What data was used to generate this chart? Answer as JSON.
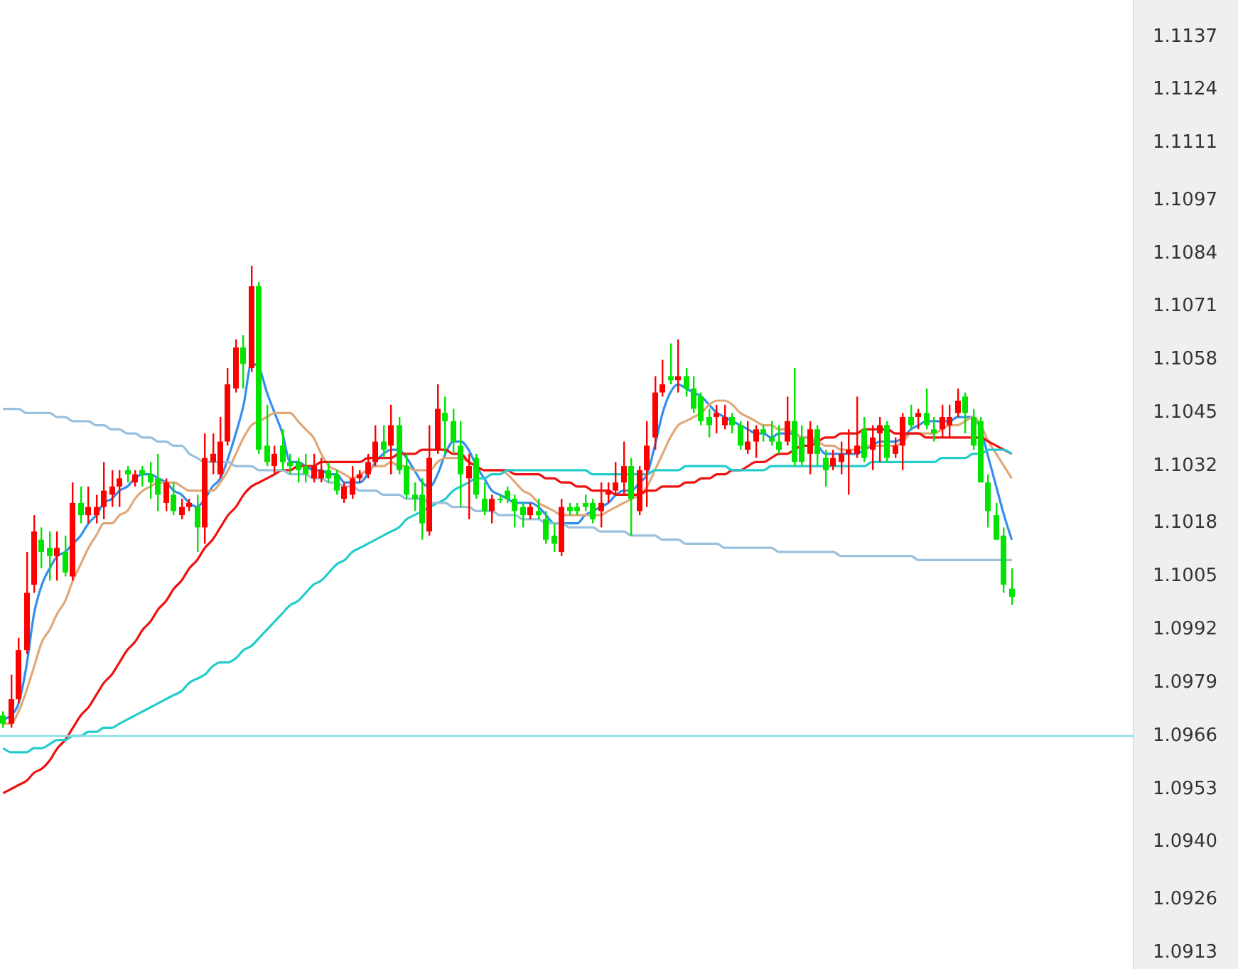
{
  "chart_data": {
    "type": "candlestick",
    "categories": [
      null,
      null,
      null,
      null,
      null,
      null,
      null,
      null,
      null,
      null,
      null,
      null,
      null,
      null,
      null,
      null,
      null,
      null,
      null,
      null,
      null,
      null,
      null,
      null,
      null,
      null,
      null,
      null,
      null,
      null,
      null,
      null,
      null,
      null,
      null,
      null,
      null,
      null,
      null,
      null,
      null,
      null,
      null,
      null,
      null,
      null,
      null,
      null,
      null,
      null,
      null,
      null,
      null,
      null,
      null,
      null,
      null,
      null,
      null,
      null,
      null,
      null,
      null,
      null,
      null,
      null,
      null,
      null,
      null,
      null,
      null,
      null,
      null,
      null,
      null,
      null,
      null,
      null,
      null,
      null,
      null,
      null,
      null,
      null,
      null,
      null,
      null,
      null,
      null,
      null,
      null,
      null,
      null,
      null,
      null,
      null,
      null,
      null,
      null,
      null,
      null,
      null,
      null,
      null,
      null,
      null,
      null,
      null,
      null,
      null,
      null,
      null,
      null,
      null,
      null,
      null,
      null,
      null,
      null,
      null,
      null,
      null,
      null,
      null,
      null,
      null,
      null,
      null,
      null,
      null,
      null
    ],
    "ohlc": [
      [
        1.0971,
        1.0972,
        1.0968,
        1.0969
      ],
      [
        1.0969,
        1.0981,
        1.0968,
        1.0975
      ],
      [
        1.0975,
        1.099,
        1.0974,
        1.0987
      ],
      [
        1.0987,
        1.1011,
        1.0986,
        1.1001
      ],
      [
        1.1003,
        1.102,
        1.1001,
        1.1016
      ],
      [
        1.1014,
        1.1017,
        1.1007,
        1.1011
      ],
      [
        1.1012,
        1.1016,
        1.1004,
        1.101
      ],
      [
        1.101,
        1.1016,
        1.1004,
        1.1012
      ],
      [
        1.1011,
        1.1015,
        1.1005,
        1.1006
      ],
      [
        1.1005,
        1.1028,
        1.1004,
        1.1023
      ],
      [
        1.1023,
        1.1027,
        1.1018,
        1.102
      ],
      [
        1.102,
        1.1027,
        1.1018,
        1.1022
      ],
      [
        1.102,
        1.1025,
        1.1018,
        1.1022
      ],
      [
        1.1022,
        1.1033,
        1.1019,
        1.1026
      ],
      [
        1.1025,
        1.1031,
        1.1022,
        1.1027
      ],
      [
        1.1027,
        1.1031,
        1.1022,
        1.1029
      ],
      [
        1.1031,
        1.1032,
        1.1028,
        1.103
      ],
      [
        1.1028,
        1.1031,
        1.1027,
        1.103
      ],
      [
        1.1031,
        1.1032,
        1.1027,
        1.103
      ],
      [
        1.103,
        1.1033,
        1.1024,
        1.1028
      ],
      [
        1.1029,
        1.1035,
        1.1021,
        1.1025
      ],
      [
        1.1023,
        1.1029,
        1.1021,
        1.1028
      ],
      [
        1.1025,
        1.1028,
        1.102,
        1.1021
      ],
      [
        1.102,
        1.1024,
        1.1019,
        1.1022
      ],
      [
        1.1022,
        1.1024,
        1.1021,
        1.1023
      ],
      [
        1.1022,
        1.1025,
        1.1011,
        1.1017
      ],
      [
        1.1017,
        1.104,
        1.1013,
        1.1034
      ],
      [
        1.1033,
        1.104,
        1.103,
        1.1035
      ],
      [
        1.103,
        1.1044,
        1.1029,
        1.1038
      ],
      [
        1.1038,
        1.1056,
        1.1037,
        1.1052
      ],
      [
        1.1051,
        1.1063,
        1.105,
        1.1061
      ],
      [
        1.1061,
        1.1064,
        1.1051,
        1.1057
      ],
      [
        1.1056,
        1.1081,
        1.1055,
        1.1076
      ],
      [
        1.1076,
        1.1077,
        1.1035,
        1.1036
      ],
      [
        1.1037,
        1.1047,
        1.1032,
        1.1033
      ],
      [
        1.1032,
        1.1037,
        1.103,
        1.1035
      ],
      [
        1.1037,
        1.1041,
        1.1031,
        1.1033
      ],
      [
        1.1033,
        1.1035,
        1.103,
        1.1032
      ],
      [
        1.1033,
        1.1034,
        1.1028,
        1.1031
      ],
      [
        1.1032,
        1.1035,
        1.1028,
        1.103
      ],
      [
        1.1029,
        1.1035,
        1.1028,
        1.1032
      ],
      [
        1.1029,
        1.1034,
        1.1028,
        1.1031
      ],
      [
        1.1031,
        1.1033,
        1.1028,
        1.1029
      ],
      [
        1.103,
        1.1031,
        1.1025,
        1.1026
      ],
      [
        1.1024,
        1.1028,
        1.1023,
        1.1027
      ],
      [
        1.1025,
        1.1032,
        1.1024,
        1.1029
      ],
      [
        1.1029,
        1.1031,
        1.1028,
        1.103
      ],
      [
        1.103,
        1.1035,
        1.1029,
        1.1033
      ],
      [
        1.1033,
        1.1042,
        1.1032,
        1.1038
      ],
      [
        1.1038,
        1.1042,
        1.1034,
        1.1036
      ],
      [
        1.1037,
        1.1047,
        1.103,
        1.1042
      ],
      [
        1.1042,
        1.1044,
        1.103,
        1.1031
      ],
      [
        1.1032,
        1.1035,
        1.1024,
        1.1025
      ],
      [
        1.1025,
        1.1028,
        1.1021,
        1.1024
      ],
      [
        1.1025,
        1.1029,
        1.1014,
        1.1018
      ],
      [
        1.1016,
        1.1042,
        1.1015,
        1.1034
      ],
      [
        1.1036,
        1.1052,
        1.1035,
        1.1046
      ],
      [
        1.1045,
        1.1049,
        1.1035,
        1.1043
      ],
      [
        1.1043,
        1.1046,
        1.1035,
        1.1038
      ],
      [
        1.1037,
        1.1043,
        1.1022,
        1.103
      ],
      [
        1.1029,
        1.1035,
        1.1019,
        1.1032
      ],
      [
        1.1034,
        1.1035,
        1.1024,
        1.1025
      ],
      [
        1.1024,
        1.1028,
        1.102,
        1.1021
      ],
      [
        1.1021,
        1.1025,
        1.1018,
        1.1024
      ],
      [
        1.1024,
        1.1025,
        1.1023,
        1.1024
      ],
      [
        1.1026,
        1.1027,
        1.1023,
        1.1024
      ],
      [
        1.1024,
        1.1025,
        1.1017,
        1.1021
      ],
      [
        1.1022,
        1.1023,
        1.1017,
        1.102
      ],
      [
        1.102,
        1.1023,
        1.1019,
        1.1022
      ],
      [
        1.1021,
        1.1024,
        1.1019,
        1.102
      ],
      [
        1.1019,
        1.1021,
        1.1013,
        1.1014
      ],
      [
        1.1015,
        1.1018,
        1.1011,
        1.1013
      ],
      [
        1.1011,
        1.1024,
        1.101,
        1.1022
      ],
      [
        1.1022,
        1.1023,
        1.102,
        1.1021
      ],
      [
        1.1022,
        1.1023,
        1.102,
        1.1021
      ],
      [
        1.1023,
        1.1025,
        1.1021,
        1.1022
      ],
      [
        1.1023,
        1.1024,
        1.1018,
        1.1019
      ],
      [
        1.1021,
        1.1028,
        1.1017,
        1.1023
      ],
      [
        1.1025,
        1.1028,
        1.1023,
        1.1026
      ],
      [
        1.1026,
        1.1033,
        1.1025,
        1.1028
      ],
      [
        1.1028,
        1.1038,
        1.1025,
        1.1032
      ],
      [
        1.1032,
        1.1034,
        1.1015,
        1.1024
      ],
      [
        1.1021,
        1.1032,
        1.102,
        1.1031
      ],
      [
        1.1031,
        1.1043,
        1.1022,
        1.1037
      ],
      [
        1.1039,
        1.1054,
        1.1036,
        1.105
      ],
      [
        1.105,
        1.1058,
        1.1049,
        1.1052
      ],
      [
        1.1054,
        1.1062,
        1.1052,
        1.1053
      ],
      [
        1.1053,
        1.1063,
        1.105,
        1.1054
      ],
      [
        1.1054,
        1.1056,
        1.1049,
        1.1051
      ],
      [
        1.1051,
        1.1054,
        1.1045,
        1.1046
      ],
      [
        1.1049,
        1.105,
        1.1042,
        1.1043
      ],
      [
        1.1044,
        1.1046,
        1.1039,
        1.1042
      ],
      [
        1.1044,
        1.1047,
        1.104,
        1.1045
      ],
      [
        1.1042,
        1.1047,
        1.1041,
        1.1044
      ],
      [
        1.1044,
        1.1045,
        1.104,
        1.1042
      ],
      [
        1.1042,
        1.1043,
        1.1036,
        1.1037
      ],
      [
        1.1036,
        1.1043,
        1.1035,
        1.1038
      ],
      [
        1.1038,
        1.1042,
        1.1034,
        1.1041
      ],
      [
        1.1041,
        1.1042,
        1.1038,
        1.104
      ],
      [
        1.1039,
        1.1043,
        1.1037,
        1.1038
      ],
      [
        1.1038,
        1.1042,
        1.1035,
        1.1036
      ],
      [
        1.1038,
        1.1049,
        1.1037,
        1.1043
      ],
      [
        1.1043,
        1.1056,
        1.1032,
        1.1033
      ],
      [
        1.1039,
        1.1042,
        1.1032,
        1.1033
      ],
      [
        1.1035,
        1.1043,
        1.103,
        1.1041
      ],
      [
        1.1041,
        1.1042,
        1.1032,
        1.1035
      ],
      [
        1.1034,
        1.1036,
        1.1027,
        1.1031
      ],
      [
        1.1032,
        1.1036,
        1.1031,
        1.1034
      ],
      [
        1.1033,
        1.1038,
        1.103,
        1.1035
      ],
      [
        1.1035,
        1.1041,
        1.1025,
        1.1036
      ],
      [
        1.1035,
        1.1049,
        1.1034,
        1.1037
      ],
      [
        1.1041,
        1.1044,
        1.1033,
        1.1034
      ],
      [
        1.1036,
        1.1042,
        1.1031,
        1.1039
      ],
      [
        1.104,
        1.1044,
        1.1033,
        1.1042
      ],
      [
        1.1042,
        1.1043,
        1.1033,
        1.1034
      ],
      [
        1.1035,
        1.1039,
        1.1034,
        1.1037
      ],
      [
        1.1037,
        1.1045,
        1.1031,
        1.1044
      ],
      [
        1.1044,
        1.1047,
        1.1041,
        1.1042
      ],
      [
        1.1044,
        1.1046,
        1.1041,
        1.1045
      ],
      [
        1.1045,
        1.1051,
        1.1041,
        1.1042
      ],
      [
        1.1041,
        1.1044,
        1.1038,
        1.104
      ],
      [
        1.1041,
        1.1047,
        1.1039,
        1.1044
      ],
      [
        1.1042,
        1.1047,
        1.1039,
        1.1044
      ],
      [
        1.1045,
        1.1051,
        1.1044,
        1.1048
      ],
      [
        1.1049,
        1.105,
        1.104,
        1.1045
      ],
      [
        1.1044,
        1.1046,
        1.1036,
        1.1037
      ],
      [
        1.1043,
        1.1044,
        1.1028,
        1.1028
      ],
      [
        1.1028,
        1.103,
        1.1017,
        1.1021
      ],
      [
        1.102,
        1.1023,
        1.1014,
        1.1014
      ],
      [
        1.1015,
        1.1017,
        1.1001,
        1.1003
      ],
      [
        1.1002,
        1.1007,
        1.0998,
        1.1
      ]
    ],
    "colors": [
      "#00e400",
      "#ff0000",
      "#ff0000",
      "#ff0000",
      "#ff0000",
      "#00e400",
      "#00e400",
      "#ff0000",
      "#00e400",
      "#ff0000",
      "#00e400",
      "#ff0000",
      "#ff0000",
      "#ff0000",
      "#ff0000",
      "#ff0000",
      "#00e400",
      "#ff0000",
      "#00e400",
      "#00e400",
      "#00e400",
      "#ff0000",
      "#00e400",
      "#ff0000",
      "#ff0000",
      "#00e400",
      "#ff0000",
      "#ff0000",
      "#ff0000",
      "#ff0000",
      "#ff0000",
      "#00e400",
      "#ff0000",
      "#00e400",
      "#00e400",
      "#ff0000",
      "#00e400",
      "#00e400",
      "#00e400",
      "#00e400",
      "#ff0000",
      "#ff0000",
      "#00e400",
      "#00e400",
      "#ff0000",
      "#ff0000",
      "#ff0000",
      "#ff0000",
      "#ff0000",
      "#00e400",
      "#ff0000",
      "#00e400",
      "#00e400",
      "#00e400",
      "#00e400",
      "#ff0000",
      "#ff0000",
      "#00e400",
      "#00e400",
      "#00e400",
      "#ff0000",
      "#00e400",
      "#00e400",
      "#ff0000",
      "#00e400",
      "#00e400",
      "#00e400",
      "#00e400",
      "#ff0000",
      "#00e400",
      "#00e400",
      "#00e400",
      "#ff0000",
      "#00e400",
      "#00e400",
      "#00e400",
      "#00e400",
      "#ff0000",
      "#ff0000",
      "#ff0000",
      "#ff0000",
      "#00e400",
      "#ff0000",
      "#ff0000",
      "#ff0000",
      "#ff0000",
      "#00e400",
      "#ff0000",
      "#00e400",
      "#00e400",
      "#00e400",
      "#00e400",
      "#ff0000",
      "#ff0000",
      "#00e400",
      "#00e400",
      "#ff0000",
      "#ff0000",
      "#00e400",
      "#00e400",
      "#00e400",
      "#ff0000",
      "#00e400",
      "#00e400",
      "#ff0000",
      "#00e400",
      "#00e400",
      "#ff0000",
      "#ff0000",
      "#ff0000",
      "#ff0000",
      "#00e400",
      "#ff0000",
      "#ff0000",
      "#00e400",
      "#ff0000",
      "#ff0000",
      "#00e400",
      "#ff0000",
      "#00e400",
      "#00e400",
      "#ff0000",
      "#ff0000",
      "#ff0000",
      "#00e400",
      "#00e400",
      "#00e400",
      "#00e400",
      "#00e400",
      "#00e400",
      "#00e400"
    ],
    "series": [
      {
        "type": "line",
        "color": "#99c0dd",
        "values": [
          1.1046,
          1.1046,
          1.1046,
          1.1045,
          1.1045,
          1.1045,
          1.1045,
          1.1044,
          1.1044,
          1.1043,
          1.1043,
          1.1043,
          1.1042,
          1.1042,
          1.1041,
          1.1041,
          1.104,
          1.104,
          1.1039,
          1.1039,
          1.1038,
          1.1038,
          1.1037,
          1.1037,
          1.1035,
          1.1034,
          1.1033,
          1.1033,
          1.1033,
          1.1033,
          1.1032,
          1.1032,
          1.1032,
          1.1031,
          1.1031,
          1.1031,
          1.1031,
          1.103,
          1.103,
          1.103,
          1.1029,
          1.1029,
          1.1028,
          1.1028,
          1.1027,
          1.1027,
          1.1026,
          1.1026,
          1.1026,
          1.1025,
          1.1025,
          1.1025,
          1.1024,
          1.1024,
          1.1024,
          1.1023,
          1.1023,
          1.1023,
          1.1022,
          1.1022,
          1.1022,
          1.1021,
          1.1021,
          1.1021,
          1.102,
          1.102,
          1.102,
          1.1019,
          1.1019,
          1.1019,
          1.1018,
          1.1018,
          1.1018,
          1.1017,
          1.1017,
          1.1017,
          1.1017,
          1.1016,
          1.1016,
          1.1016,
          1.1016,
          1.1015,
          1.1015,
          1.1015,
          1.1015,
          1.1014,
          1.1014,
          1.1014,
          1.1013,
          1.1013,
          1.1013,
          1.1013,
          1.1013,
          1.1012,
          1.1012,
          1.1012,
          1.1012,
          1.1012,
          1.1012,
          1.1012,
          1.1011,
          1.1011,
          1.1011,
          1.1011,
          1.1011,
          1.1011,
          1.1011,
          1.1011,
          1.101,
          1.101,
          1.101,
          1.101,
          1.101,
          1.101,
          1.101,
          1.101,
          1.101,
          1.101,
          1.1009,
          1.1009,
          1.1009,
          1.1009,
          1.1009,
          1.1009,
          1.1009,
          1.1009,
          1.1009,
          1.1009,
          1.1009,
          1.1009,
          1.1009
        ]
      },
      {
        "type": "line",
        "color": "#22cccc",
        "values": [
          1.0963,
          1.0962,
          1.0962,
          1.0962,
          1.0963,
          1.0963,
          1.0964,
          1.0965,
          1.0965,
          1.0966,
          1.0966,
          1.0967,
          1.0967,
          1.0968,
          1.0968,
          1.0969,
          1.097,
          1.0971,
          1.0972,
          1.0973,
          1.0974,
          1.0975,
          1.0976,
          1.0977,
          1.0979,
          1.098,
          1.0981,
          1.0983,
          1.0984,
          1.0984,
          1.0985,
          1.0987,
          1.0988,
          1.099,
          1.0992,
          1.0994,
          1.0996,
          1.0998,
          1.0999,
          1.1001,
          1.1003,
          1.1004,
          1.1006,
          1.1008,
          1.1009,
          1.1011,
          1.1012,
          1.1013,
          1.1014,
          1.1015,
          1.1016,
          1.1017,
          1.1019,
          1.102,
          1.1021,
          1.1022,
          1.1023,
          1.1024,
          1.1026,
          1.1027,
          1.1028,
          1.1029,
          1.1029,
          1.103,
          1.103,
          1.1031,
          1.1031,
          1.1031,
          1.1031,
          1.1031,
          1.1031,
          1.1031,
          1.1031,
          1.1031,
          1.1031,
          1.1031,
          1.103,
          1.103,
          1.103,
          1.103,
          1.103,
          1.103,
          1.103,
          1.103,
          1.1031,
          1.1031,
          1.1031,
          1.1031,
          1.1032,
          1.1032,
          1.1032,
          1.1032,
          1.1032,
          1.1032,
          1.1031,
          1.1031,
          1.1031,
          1.1031,
          1.1031,
          1.1032,
          1.1032,
          1.1032,
          1.1032,
          1.1032,
          1.1032,
          1.1032,
          1.1032,
          1.1032,
          1.1032,
          1.1032,
          1.1032,
          1.1032,
          1.1033,
          1.1033,
          1.1033,
          1.1033,
          1.1033,
          1.1033,
          1.1033,
          1.1033,
          1.1033,
          1.1034,
          1.1034,
          1.1034,
          1.1034,
          1.1035,
          1.1035,
          1.1036,
          1.1036,
          1.1036,
          1.1035
        ]
      },
      {
        "type": "line",
        "color": "#ee1111",
        "values": [
          1.0952,
          1.0953,
          1.0954,
          1.0955,
          1.0957,
          1.0958,
          1.096,
          1.0963,
          1.0965,
          1.0968,
          1.0971,
          1.0973,
          1.0976,
          1.0979,
          1.0981,
          1.0984,
          1.0987,
          1.0989,
          1.0992,
          1.0994,
          1.0997,
          1.0999,
          1.1002,
          1.1004,
          1.1007,
          1.1009,
          1.1012,
          1.1014,
          1.1017,
          1.102,
          1.1022,
          1.1025,
          1.1027,
          1.1028,
          1.1029,
          1.103,
          1.1031,
          1.1031,
          1.1032,
          1.1032,
          1.1032,
          1.1033,
          1.1033,
          1.1033,
          1.1033,
          1.1033,
          1.1033,
          1.1034,
          1.1034,
          1.1034,
          1.1034,
          1.1035,
          1.1035,
          1.1035,
          1.1036,
          1.1036,
          1.1036,
          1.1036,
          1.1035,
          1.1035,
          1.1033,
          1.1032,
          1.1031,
          1.1031,
          1.1031,
          1.1031,
          1.103,
          1.103,
          1.103,
          1.103,
          1.1029,
          1.1029,
          1.1028,
          1.1028,
          1.1027,
          1.1027,
          1.1026,
          1.1026,
          1.1026,
          1.1025,
          1.1025,
          1.1025,
          1.1025,
          1.1026,
          1.1026,
          1.1027,
          1.1027,
          1.1027,
          1.1028,
          1.1028,
          1.1029,
          1.1029,
          1.103,
          1.103,
          1.1031,
          1.1031,
          1.1032,
          1.1033,
          1.1033,
          1.1034,
          1.1035,
          1.1035,
          1.1036,
          1.1037,
          1.1037,
          1.1038,
          1.1039,
          1.1039,
          1.104,
          1.104,
          1.104,
          1.1041,
          1.1041,
          1.1041,
          1.1041,
          1.104,
          1.104,
          1.104,
          1.104,
          1.1039,
          1.1039,
          1.1039,
          1.1039,
          1.1039,
          1.1039,
          1.1039,
          1.1039,
          1.1038,
          1.1037,
          1.1036,
          1.1035
        ]
      },
      {
        "type": "line",
        "color": "#e0a878",
        "values": [
          1.0969,
          1.0969,
          1.0972,
          1.0977,
          1.0983,
          1.0989,
          1.0992,
          1.0996,
          1.0999,
          1.1004,
          1.1008,
          1.1012,
          1.1015,
          1.1018,
          1.1018,
          1.102,
          1.1021,
          1.1024,
          1.1026,
          1.1027,
          1.1028,
          1.1028,
          1.1028,
          1.1027,
          1.1026,
          1.1026,
          1.1026,
          1.1026,
          1.1028,
          1.1031,
          1.1035,
          1.1039,
          1.1042,
          1.1043,
          1.1044,
          1.1045,
          1.1045,
          1.1045,
          1.1043,
          1.1041,
          1.1039,
          1.1035,
          1.1032,
          1.1031,
          1.103,
          1.1029,
          1.103,
          1.1031,
          1.1032,
          1.1032,
          1.1033,
          1.1032,
          1.1032,
          1.1031,
          1.1031,
          1.1031,
          1.1033,
          1.1034,
          1.1034,
          1.1034,
          1.1033,
          1.1032,
          1.1031,
          1.1031,
          1.1031,
          1.103,
          1.1028,
          1.1026,
          1.1025,
          1.1023,
          1.1022,
          1.1021,
          1.102,
          1.102,
          1.102,
          1.102,
          1.102,
          1.102,
          1.1021,
          1.1022,
          1.1023,
          1.1024,
          1.1025,
          1.1027,
          1.1031,
          1.1035,
          1.1039,
          1.1042,
          1.1043,
          1.1044,
          1.1045,
          1.1047,
          1.1048,
          1.1048,
          1.1047,
          1.1045,
          1.1044,
          1.1043,
          1.1042,
          1.1042,
          1.1041,
          1.1041,
          1.104,
          1.1039,
          1.1039,
          1.1038,
          1.1037,
          1.1037,
          1.1036,
          1.1036,
          1.1036,
          1.1037,
          1.1037,
          1.1037,
          1.1037,
          1.1037,
          1.1038,
          1.104,
          1.104,
          1.104,
          1.104,
          1.1041,
          1.1042,
          1.1042,
          1.1043,
          1.1044,
          1.1042,
          1.1038,
          1.1035,
          1.1032,
          1.1029
        ]
      },
      {
        "type": "line",
        "color": "#2f8fef",
        "values": [
          1.097,
          1.0971,
          1.0974,
          1.0983,
          1.0996,
          1.1003,
          1.1007,
          1.101,
          1.1011,
          1.1013,
          1.1015,
          1.1018,
          1.102,
          1.1023,
          1.1024,
          1.1026,
          1.1027,
          1.1029,
          1.103,
          1.103,
          1.1029,
          1.1028,
          1.1026,
          1.1025,
          1.1023,
          1.1022,
          1.1024,
          1.1027,
          1.1029,
          1.1034,
          1.104,
          1.1047,
          1.1057,
          1.1056,
          1.105,
          1.1045,
          1.104,
          1.1033,
          1.1033,
          1.1032,
          1.1031,
          1.1031,
          1.103,
          1.103,
          1.1028,
          1.1028,
          1.1028,
          1.103,
          1.1033,
          1.1035,
          1.1036,
          1.1036,
          1.1034,
          1.1031,
          1.1028,
          1.1027,
          1.103,
          1.1035,
          1.1038,
          1.1038,
          1.1036,
          1.1032,
          1.1029,
          1.1026,
          1.1025,
          1.1024,
          1.1023,
          1.1023,
          1.1023,
          1.1022,
          1.102,
          1.1018,
          1.1018,
          1.1018,
          1.1018,
          1.102,
          1.1021,
          1.1022,
          1.1023,
          1.1025,
          1.1026,
          1.1026,
          1.1028,
          1.103,
          1.1037,
          1.1045,
          1.105,
          1.1052,
          1.1051,
          1.105,
          1.1049,
          1.1047,
          1.1045,
          1.1044,
          1.1043,
          1.1042,
          1.1041,
          1.104,
          1.104,
          1.1039,
          1.104,
          1.104,
          1.104,
          1.1039,
          1.1039,
          1.1037,
          1.1035,
          1.1035,
          1.1035,
          1.1035,
          1.1035,
          1.1036,
          1.1037,
          1.1038,
          1.1038,
          1.1038,
          1.1039,
          1.1041,
          1.1042,
          1.1043,
          1.1043,
          1.1043,
          1.1043,
          1.1044,
          1.1044,
          1.1044,
          1.1041,
          1.1034,
          1.1027,
          1.102,
          1.1014
        ]
      }
    ],
    "ylim": [
      1.0909,
      1.1146
    ],
    "yticks": [
      1.0913,
      1.0926,
      {
        "value": 1.094,
        "label": "1.0940"
      },
      1.0953,
      1.0966,
      1.0979,
      1.0992,
      1.1005,
      1.1018,
      1.1032,
      1.1045,
      1.1058,
      1.1071,
      1.1084,
      1.1097,
      1.1111,
      1.1124,
      1.1137
    ],
    "ref_lines": [
      {
        "axis": "y",
        "value": 1.0966,
        "color": "#88dddd"
      }
    ]
  }
}
